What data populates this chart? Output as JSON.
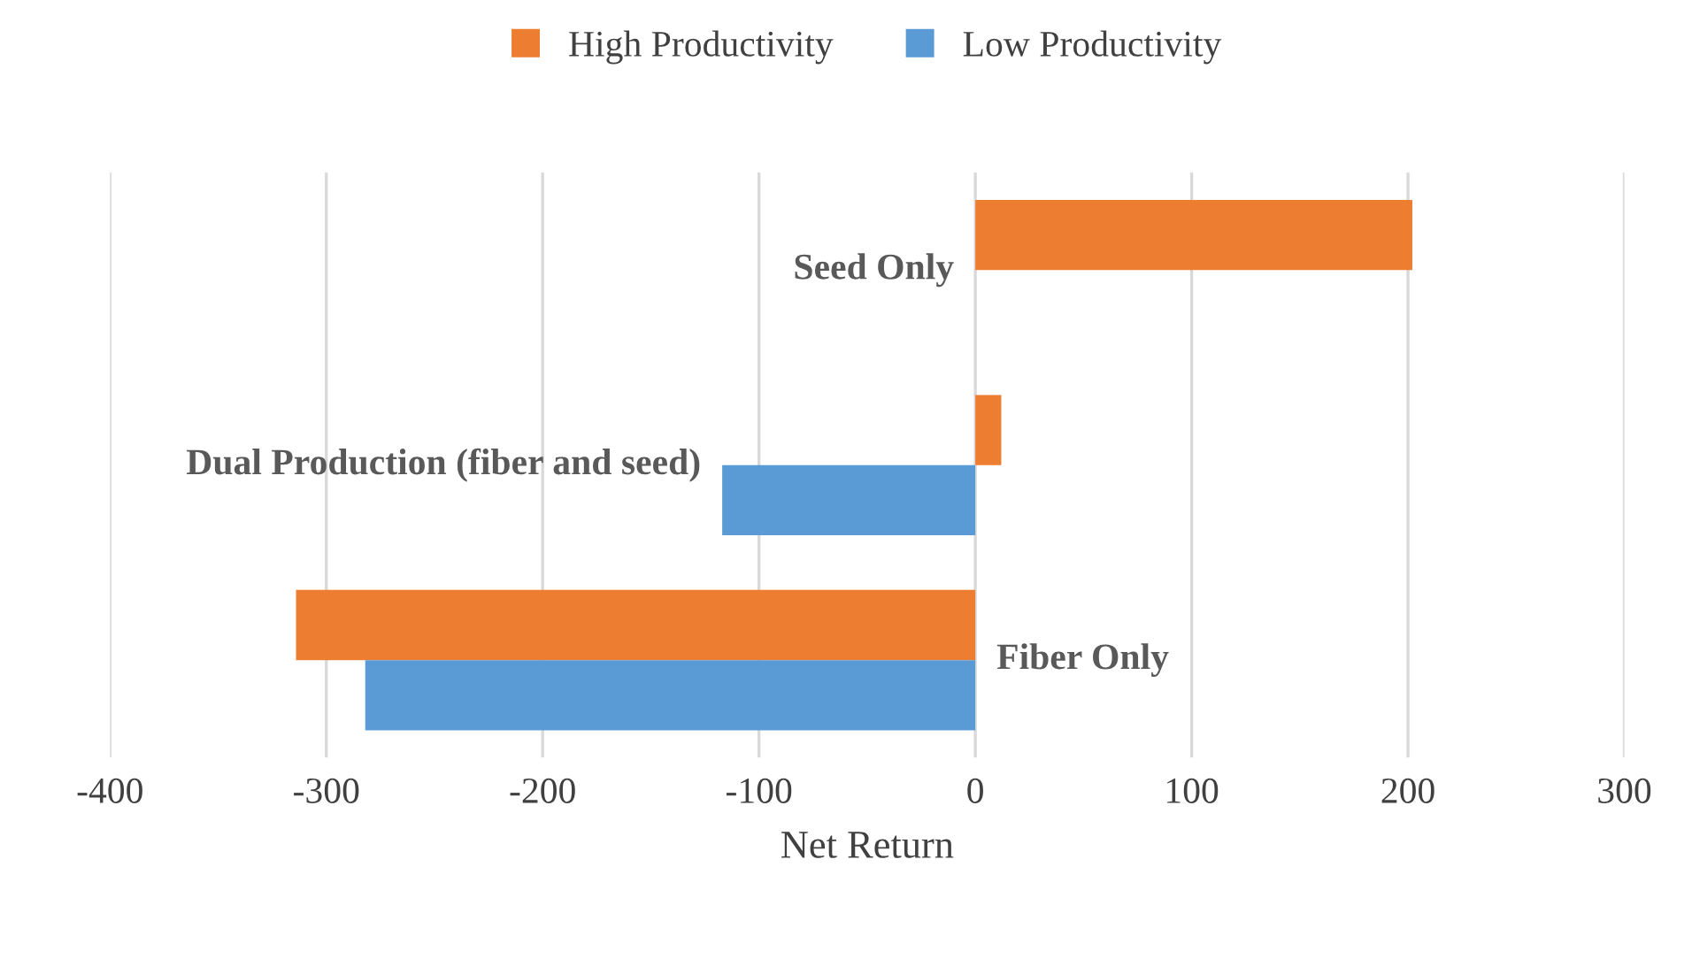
{
  "chart_data": {
    "type": "bar",
    "orientation": "horizontal",
    "xlabel": "Net Return",
    "categories": [
      "Seed Only",
      "Dual Production (fiber and seed)",
      "Fiber Only"
    ],
    "series": [
      {
        "name": "High Productivity",
        "color": "#ed7d31",
        "values": [
          202,
          12,
          -314
        ]
      },
      {
        "name": "Low Productivity",
        "color": "#5b9bd5",
        "values": [
          0,
          -117,
          -282
        ]
      }
    ],
    "xlim": [
      -400,
      300
    ],
    "xticks": [
      -400,
      -300,
      -200,
      -100,
      0,
      100,
      200,
      300
    ],
    "grid": "x",
    "legend": "top"
  }
}
